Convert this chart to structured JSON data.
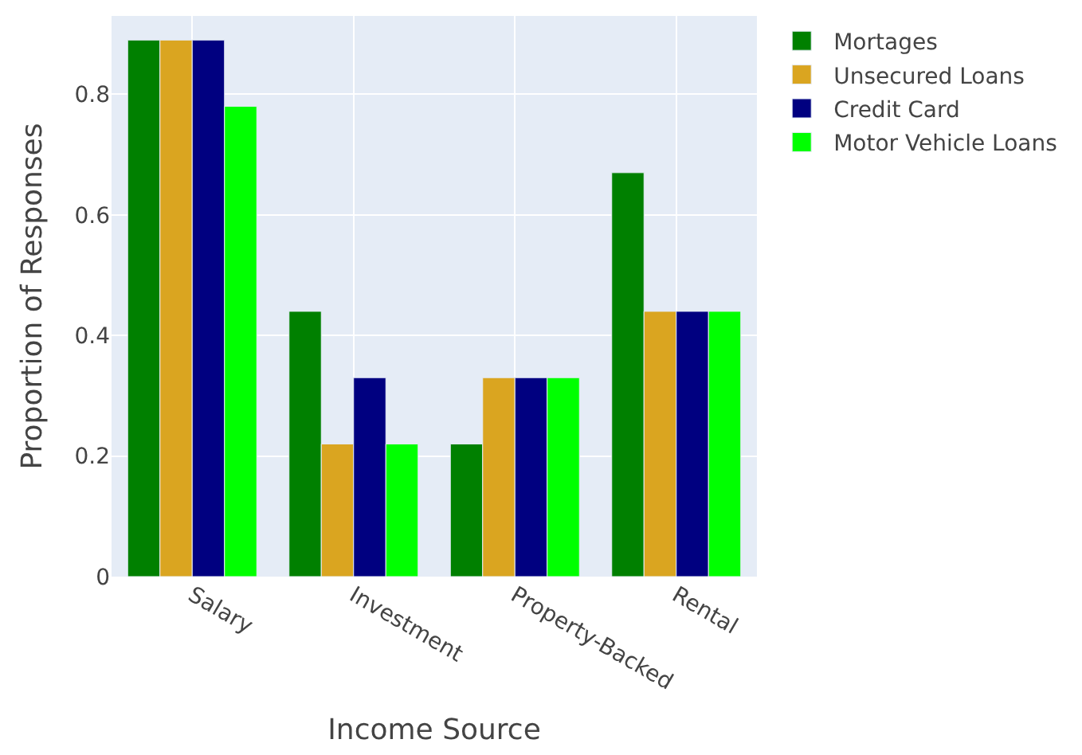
{
  "chart_data": {
    "type": "bar",
    "xlabel": "Income Source",
    "ylabel": "Proportion of Responses",
    "categories": [
      "Salary",
      "Investment",
      "Property-Backed",
      "Rental"
    ],
    "series": [
      {
        "name": "Mortages",
        "color": "#008000",
        "values": [
          0.89,
          0.44,
          0.22,
          0.67
        ]
      },
      {
        "name": "Unsecured Loans",
        "color": "#daa520",
        "values": [
          0.89,
          0.22,
          0.33,
          0.44
        ]
      },
      {
        "name": "Credit Card",
        "color": "#000080",
        "values": [
          0.89,
          0.33,
          0.33,
          0.44
        ]
      },
      {
        "name": "Motor Vehicle Loans",
        "color": "#00ff00",
        "values": [
          0.78,
          0.22,
          0.33,
          0.44
        ]
      }
    ],
    "ylim": [
      0,
      0.93
    ],
    "yticks": [
      0,
      0.2,
      0.4,
      0.6,
      0.8
    ],
    "grid": true,
    "legend": "top right"
  }
}
